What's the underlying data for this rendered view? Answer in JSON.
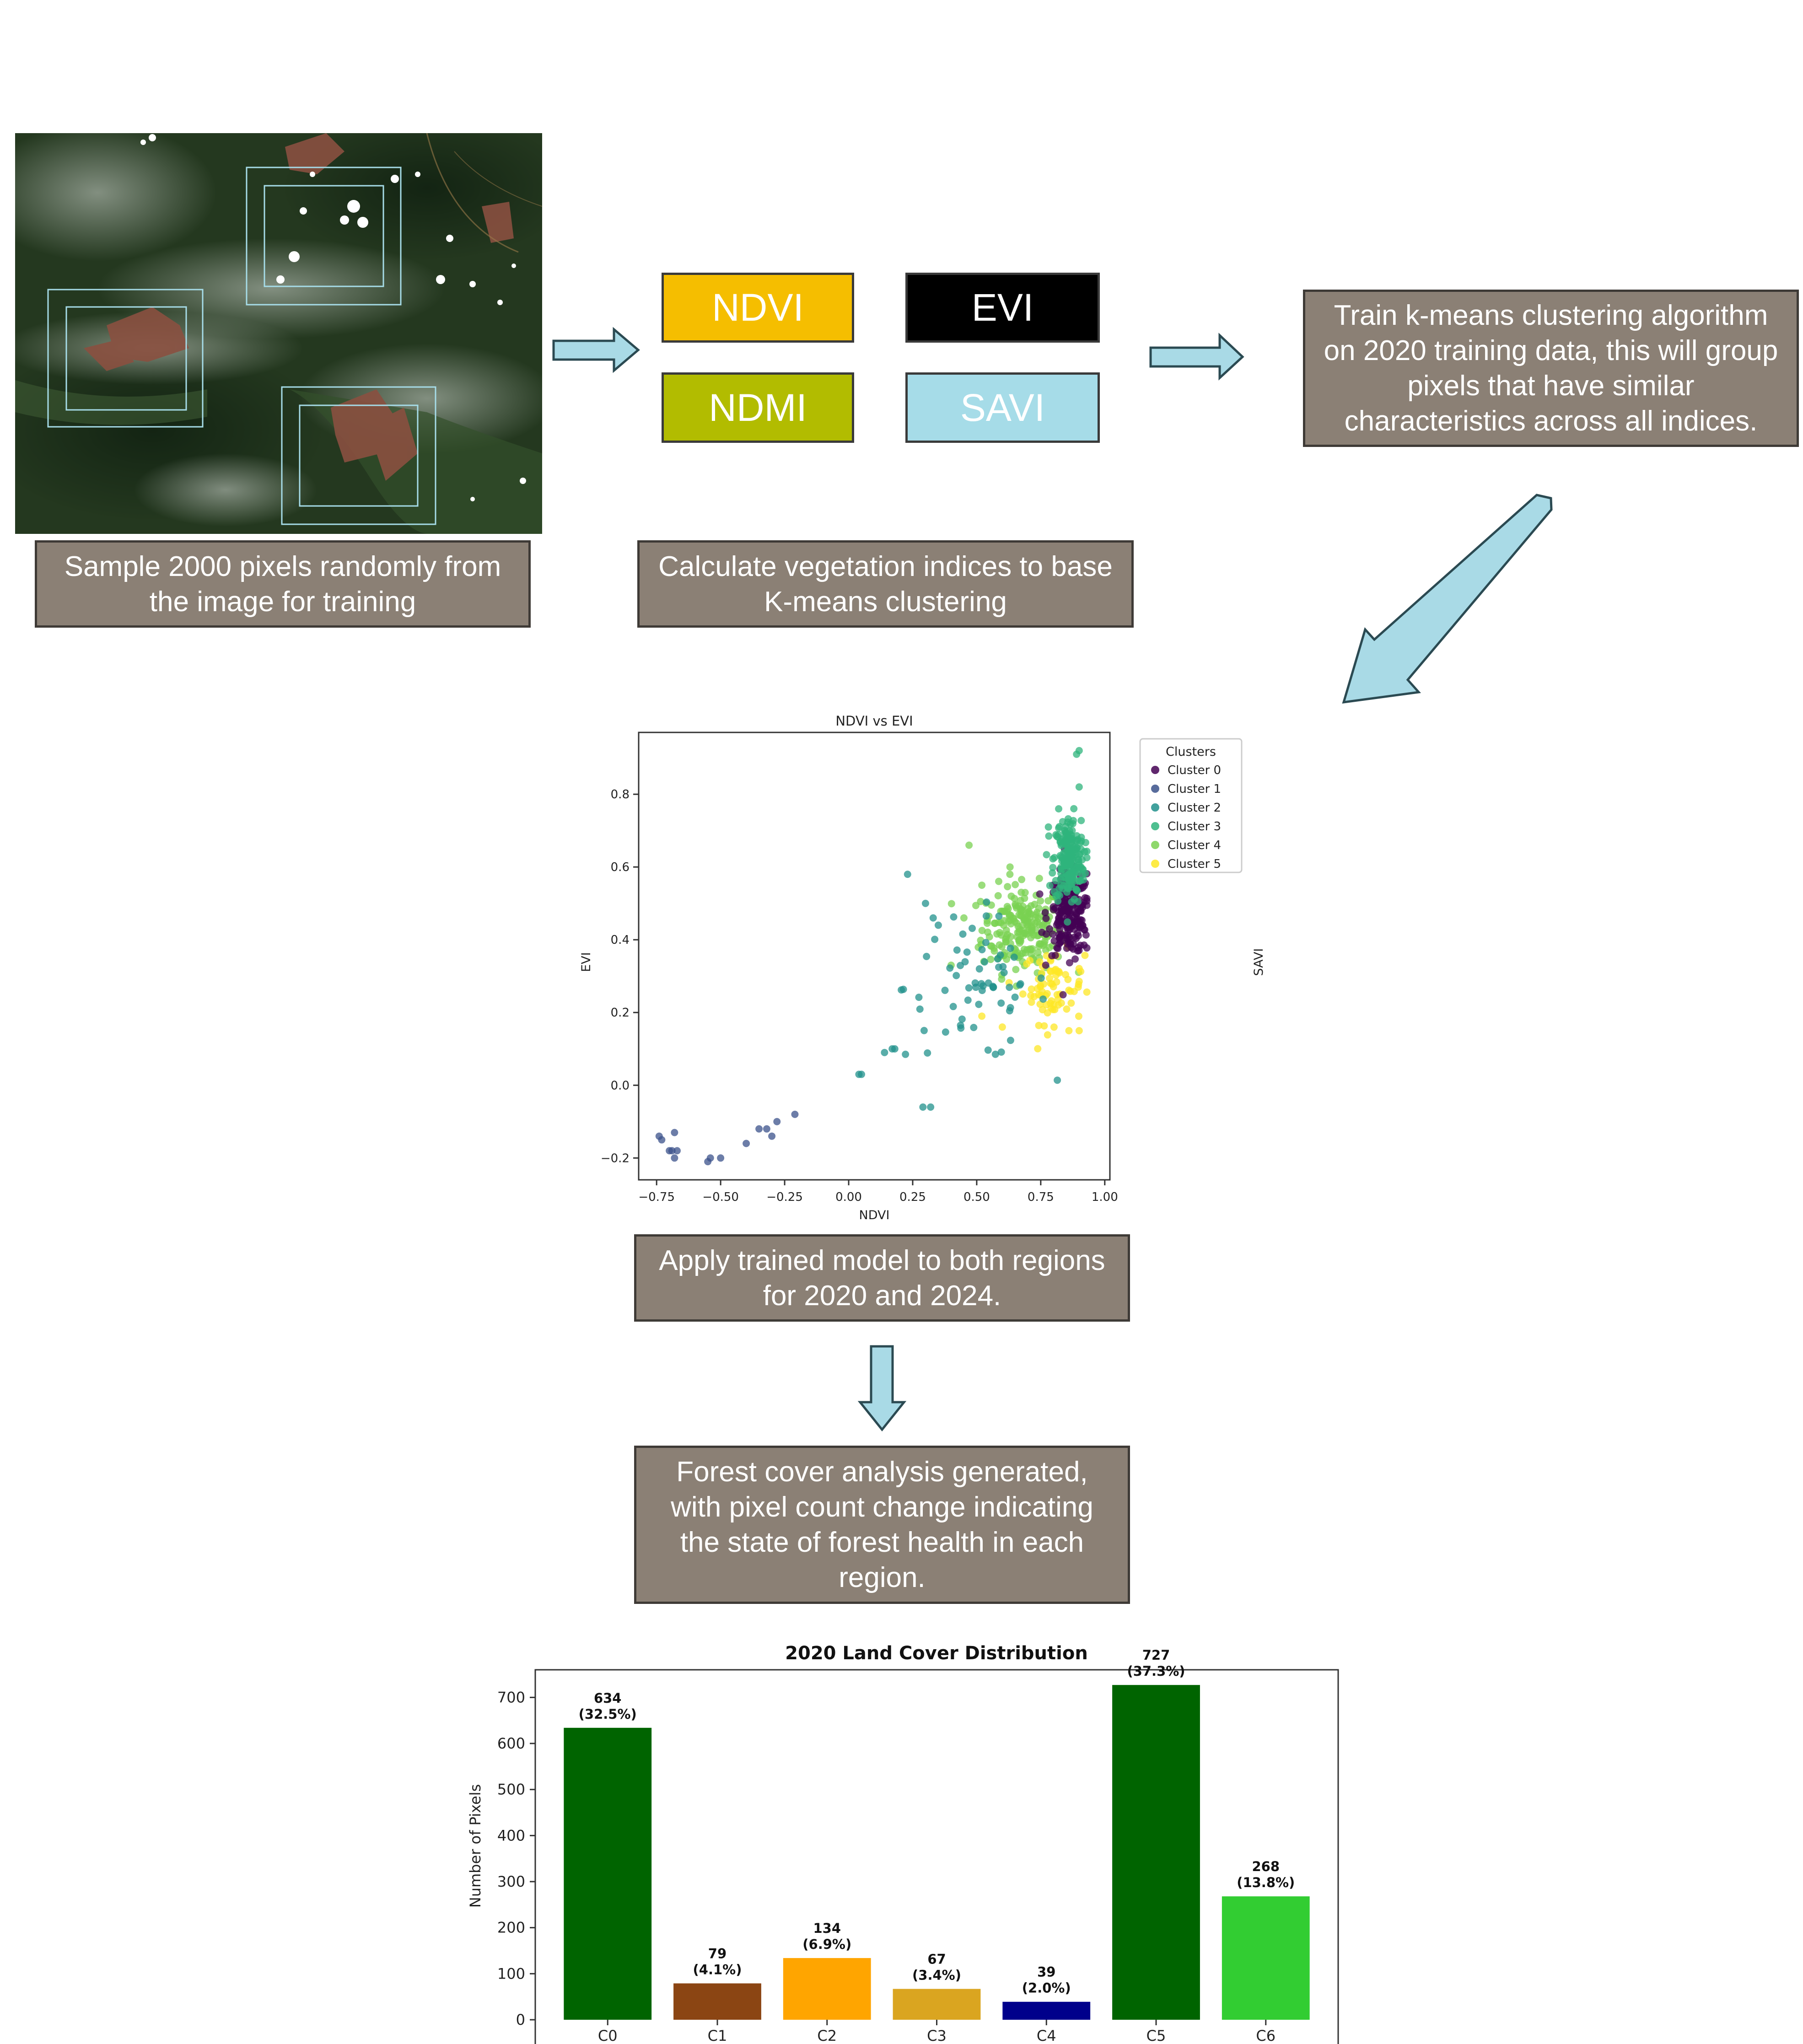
{
  "steps": {
    "sample": "Sample 2000 pixels randomly from the image for training",
    "calculate": "Calculate vegetation indices to base K-means clustering",
    "train": "Train k-means clustering algorithm on 2020 training data, this will group pixels that have similar characteristics across all indices.",
    "apply": "Apply trained model to both regions for 2020 and 2024.",
    "analysis": "Forest cover analysis generated, with pixel count change indicating the state of forest health in each region."
  },
  "indices": [
    {
      "label": "NDVI",
      "color": "#f5be00"
    },
    {
      "label": "EVI",
      "color": "#000000"
    },
    {
      "label": "NDMI",
      "color": "#b2bc00"
    },
    {
      "label": "SAVI",
      "color": "#a6dce8"
    }
  ],
  "colors": {
    "arrow": "#a9dae6",
    "arrow_stroke": "#2b4a52",
    "note_bg": "#8b8075"
  },
  "icons": [
    "satellite-image",
    "arrow-right-icon",
    "arrow-down-left-icon",
    "arrow-down-icon"
  ],
  "chart_data": [
    {
      "type": "scatter",
      "title": "NDVI vs EVI",
      "xlabel": "NDVI",
      "ylabel": "EVI",
      "side_label": "SAVI",
      "xlim": [
        -0.82,
        1.02
      ],
      "ylim": [
        -0.26,
        0.97
      ],
      "xticks": [
        -0.75,
        -0.5,
        -0.25,
        0.0,
        0.25,
        0.5,
        0.75,
        1.0
      ],
      "xtick_labels": [
        "−0.75",
        "−0.50",
        "−0.25",
        "0.00",
        "0.25",
        "0.50",
        "0.75",
        "1.00"
      ],
      "yticks": [
        -0.2,
        0.0,
        0.2,
        0.4,
        0.6,
        0.8
      ],
      "ytick_labels": [
        "−0.2",
        "0.0",
        "0.2",
        "0.4",
        "0.6",
        "0.8"
      ],
      "legend_title": "Clusters",
      "legend_position": "outside-right",
      "series": [
        {
          "name": "Cluster 0",
          "color": "#440154",
          "center": [
            0.86,
            0.47
          ],
          "spread": [
            0.04,
            0.055
          ],
          "count": 220,
          "points": []
        },
        {
          "name": "Cluster 1",
          "color": "#3b528b",
          "center": [
            0,
            0
          ],
          "spread": [
            0,
            0
          ],
          "count": 0,
          "points": [
            [
              -0.73,
              -0.15
            ],
            [
              -0.74,
              -0.14
            ],
            [
              -0.7,
              -0.18
            ],
            [
              -0.68,
              -0.2
            ],
            [
              -0.69,
              -0.18
            ],
            [
              -0.67,
              -0.18
            ],
            [
              -0.68,
              -0.13
            ],
            [
              -0.55,
              -0.21
            ],
            [
              -0.54,
              -0.2
            ],
            [
              -0.5,
              -0.2
            ],
            [
              -0.4,
              -0.16
            ],
            [
              -0.35,
              -0.12
            ],
            [
              -0.32,
              -0.12
            ],
            [
              -0.3,
              -0.14
            ],
            [
              -0.28,
              -0.1
            ],
            [
              -0.21,
              -0.08
            ]
          ]
        },
        {
          "name": "Cluster 2",
          "color": "#21918c",
          "center": [
            0.5,
            0.27
          ],
          "spread": [
            0.14,
            0.1
          ],
          "count": 65,
          "points": [
            [
              0.04,
              0.03
            ],
            [
              0.05,
              0.03
            ],
            [
              0.14,
              0.09
            ],
            [
              0.17,
              0.1
            ],
            [
              0.18,
              0.1
            ],
            [
              0.23,
              0.58
            ],
            [
              0.3,
              0.5
            ],
            [
              0.33,
              0.46
            ],
            [
              0.35,
              0.44
            ],
            [
              0.29,
              -0.06
            ],
            [
              0.32,
              -0.06
            ]
          ]
        },
        {
          "name": "Cluster 3",
          "color": "#2fb47c",
          "center": [
            0.86,
            0.62
          ],
          "spread": [
            0.03,
            0.06
          ],
          "count": 200,
          "points": [
            [
              0.89,
              0.91
            ],
            [
              0.9,
              0.92
            ],
            [
              0.9,
              0.82
            ],
            [
              0.82,
              0.76
            ],
            [
              0.78,
              0.71
            ]
          ]
        },
        {
          "name": "Cluster 4",
          "color": "#7ad151",
          "center": [
            0.68,
            0.43
          ],
          "spread": [
            0.08,
            0.06
          ],
          "count": 220,
          "points": [
            [
              0.47,
              0.66
            ],
            [
              0.63,
              0.6
            ],
            [
              0.52,
              0.55
            ],
            [
              0.45,
              0.46
            ],
            [
              0.4,
              0.33
            ]
          ]
        },
        {
          "name": "Cluster 5",
          "color": "#fde725",
          "center": [
            0.8,
            0.27
          ],
          "spread": [
            0.06,
            0.05
          ],
          "count": 75,
          "points": [
            [
              0.6,
              0.16
            ],
            [
              0.52,
              0.19
            ],
            [
              0.86,
              0.15
            ],
            [
              0.9,
              0.15
            ]
          ]
        }
      ]
    },
    {
      "type": "bar",
      "title": "2020 Land Cover Distribution",
      "xlabel": "",
      "ylabel": "Number of Pixels",
      "ylim": [
        0,
        760
      ],
      "yticks": [
        0,
        100,
        200,
        300,
        400,
        500,
        600,
        700
      ],
      "categories": [
        "C0",
        "C1",
        "C2",
        "C3",
        "C4",
        "C5",
        "C6"
      ],
      "values": [
        634,
        79,
        134,
        67,
        39,
        727,
        268
      ],
      "value_labels": [
        "634",
        "79",
        "134",
        "67",
        "39",
        "727",
        "268"
      ],
      "percent_labels": [
        "(32.5%)",
        "(4.1%)",
        "(6.9%)",
        "(3.4%)",
        "(2.0%)",
        "(37.3%)",
        "(13.8%)"
      ],
      "colors": [
        "#006400",
        "#8b4513",
        "#ffa500",
        "#daa520",
        "#00008b",
        "#006400",
        "#32cd32"
      ]
    }
  ]
}
